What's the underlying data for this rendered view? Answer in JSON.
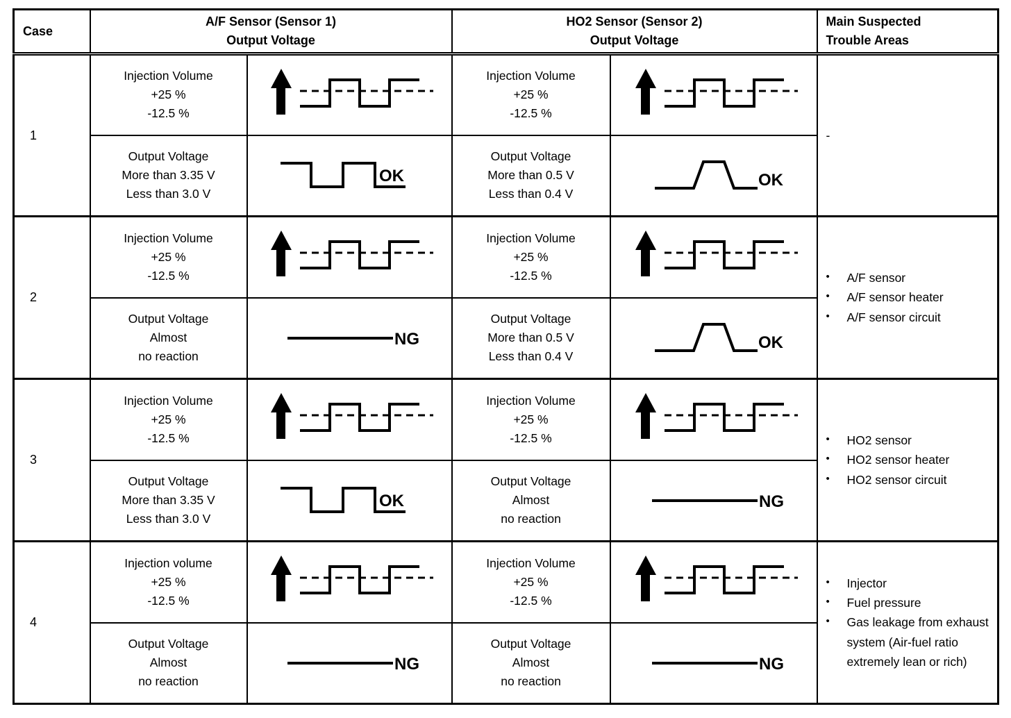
{
  "page": {
    "background_color": "#ffffff",
    "line_color": "#000000"
  },
  "headers": {
    "case": "Case",
    "af": "A/F Sensor (Sensor 1)\nOutput Voltage",
    "ho2": "HO2 Sensor (Sensor 2)\nOutput Voltage",
    "trouble": "Main Suspected\nTrouble Areas"
  },
  "cases": [
    {
      "num": "1",
      "af": {
        "injection": {
          "text": "Injection Volume\n+25 %\n-12.5 %",
          "wave": "injection"
        },
        "output": {
          "text": "Output Voltage\nMore than 3.35 V\nLess than 3.0 V",
          "wave": "square",
          "result": "OK"
        }
      },
      "ho2": {
        "injection": {
          "text": "Injection Volume\n+25 %\n-12.5 %",
          "wave": "injection"
        },
        "output": {
          "text": "Output Voltage\nMore than 0.5 V\nLess than 0.4 V",
          "wave": "trapezoid",
          "result": "OK"
        }
      },
      "trouble": [
        {
          "bullet": "",
          "text": "-"
        }
      ]
    },
    {
      "num": "2",
      "af": {
        "injection": {
          "text": "Injection Volume\n+25 %\n-12.5 %",
          "wave": "injection"
        },
        "output": {
          "text": "Output Voltage\nAlmost\nno reaction",
          "wave": "flat",
          "result": "NG"
        }
      },
      "ho2": {
        "injection": {
          "text": "Injection Volume\n+25 %\n-12.5 %",
          "wave": "injection"
        },
        "output": {
          "text": "Output Voltage\nMore than 0.5 V\nLess than 0.4 V",
          "wave": "trapezoid",
          "result": "OK"
        }
      },
      "trouble": [
        {
          "bullet": "•",
          "text": "A/F sensor"
        },
        {
          "bullet": "•",
          "text": "A/F sensor heater"
        },
        {
          "bullet": "•",
          "text": "A/F sensor circuit"
        }
      ]
    },
    {
      "num": "3",
      "af": {
        "injection": {
          "text": "Injection Volume\n+25 %\n-12.5 %",
          "wave": "injection"
        },
        "output": {
          "text": "Output Voltage\nMore than 3.35 V\nLess than 3.0 V",
          "wave": "square",
          "result": "OK"
        }
      },
      "ho2": {
        "injection": {
          "text": "Injection Volume\n+25 %\n-12.5 %",
          "wave": "injection"
        },
        "output": {
          "text": "Output Voltage\nAlmost\nno reaction",
          "wave": "flat",
          "result": "NG"
        }
      },
      "trouble": [
        {
          "bullet": "•",
          "text": "HO2 sensor"
        },
        {
          "bullet": "•",
          "text": "HO2 sensor heater"
        },
        {
          "bullet": "•",
          "text": "HO2 sensor circuit"
        }
      ]
    },
    {
      "num": "4",
      "af": {
        "injection": {
          "text": "Injection volume\n+25 %\n-12.5 %",
          "wave": "injection"
        },
        "output": {
          "text": "Output Voltage\nAlmost\nno reaction",
          "wave": "flat",
          "result": "NG"
        }
      },
      "ho2": {
        "injection": {
          "text": "Injection Volume\n+25 %\n-12.5 %",
          "wave": "injection"
        },
        "output": {
          "text": "Output Voltage\nAlmost\nno reaction",
          "wave": "flat",
          "result": "NG"
        }
      },
      "trouble": [
        {
          "bullet": "•",
          "text": "Injector"
        },
        {
          "bullet": "•",
          "text": "Fuel pressure"
        },
        {
          "bullet": "•",
          "text": "Gas leakage from exhaust system (Air-fuel ratio extremely lean or rich)"
        }
      ]
    }
  ]
}
